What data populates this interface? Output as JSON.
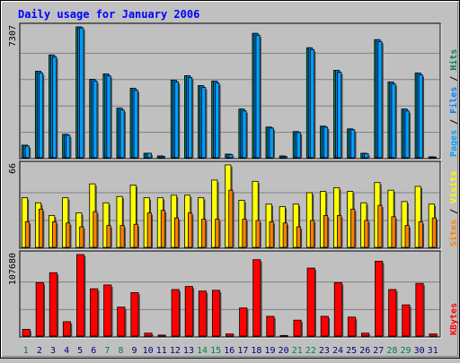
{
  "title": "Daily usage for January 2006",
  "colors": {
    "background": "#c0c0c0",
    "title": "#0000ff",
    "weekday_label": "#000080",
    "weekend_label": "#008040",
    "pages": "#00a0ff",
    "files": "#0080ff",
    "hits": "#00805c",
    "visits": "#ffff00",
    "sites": "#ff8000",
    "kbytes": "#ff0000"
  },
  "chart_data": [
    {
      "type": "bar",
      "panel": "hits-files-pages",
      "max_label": "7307",
      "ylim": [
        0,
        7307
      ],
      "grid": true,
      "categories": [
        "1",
        "2",
        "3",
        "4",
        "5",
        "6",
        "7",
        "8",
        "9",
        "10",
        "11",
        "12",
        "13",
        "14",
        "15",
        "16",
        "17",
        "18",
        "19",
        "20",
        "21",
        "22",
        "23",
        "24",
        "25",
        "26",
        "27",
        "28",
        "29",
        "30",
        "31"
      ],
      "weekend_days": [
        "1",
        "7",
        "8",
        "14",
        "15",
        "21",
        "22",
        "28",
        "29"
      ],
      "axis_legend": [
        "Pages",
        "Files",
        "Hits"
      ],
      "series": [
        {
          "name": "Hits",
          "values": [
            750,
            4850,
            5750,
            1350,
            7307,
            4400,
            4700,
            2800,
            3900,
            300,
            150,
            4350,
            4600,
            4050,
            4300,
            250,
            2750,
            6950,
            1750,
            150,
            1500,
            6150,
            1800,
            4900,
            1650,
            300,
            6600,
            4250,
            2750,
            4750,
            100
          ]
        },
        {
          "name": "Files",
          "values": [
            750,
            4850,
            5750,
            1350,
            7307,
            4400,
            4700,
            2800,
            3900,
            300,
            150,
            4350,
            4600,
            4050,
            4300,
            250,
            2750,
            6950,
            1750,
            150,
            1500,
            6150,
            1800,
            4900,
            1650,
            300,
            6600,
            4250,
            2750,
            4750,
            100
          ]
        },
        {
          "name": "Pages",
          "values": [
            700,
            4750,
            5650,
            1300,
            7250,
            4300,
            4600,
            2700,
            3800,
            300,
            120,
            4250,
            4500,
            3950,
            4200,
            220,
            2650,
            6850,
            1700,
            120,
            1450,
            6050,
            1750,
            4800,
            1600,
            280,
            6500,
            4150,
            2650,
            4650,
            90
          ]
        }
      ]
    },
    {
      "type": "bar",
      "panel": "visits-sites",
      "max_label": "66",
      "ylim": [
        0,
        66
      ],
      "grid": true,
      "categories": [
        "1",
        "2",
        "3",
        "4",
        "5",
        "6",
        "7",
        "8",
        "9",
        "10",
        "11",
        "12",
        "13",
        "14",
        "15",
        "16",
        "17",
        "18",
        "19",
        "20",
        "21",
        "22",
        "23",
        "24",
        "25",
        "26",
        "27",
        "28",
        "29",
        "30",
        "31"
      ],
      "axis_legend": [
        "Sites",
        "Visits"
      ],
      "series": [
        {
          "name": "Visits",
          "values": [
            40,
            36,
            26,
            40,
            28,
            51,
            36,
            41,
            50,
            40,
            40,
            42,
            42,
            40,
            54,
            66,
            38,
            53,
            35,
            33,
            35,
            44,
            45,
            48,
            45,
            36,
            52,
            46,
            37,
            49,
            35
          ]
        },
        {
          "name": "Sites",
          "values": [
            21,
            31,
            21,
            20,
            17,
            29,
            18,
            18,
            19,
            28,
            30,
            24,
            28,
            23,
            23,
            46,
            23,
            22,
            21,
            20,
            17,
            22,
            26,
            26,
            31,
            22,
            34,
            25,
            18,
            21,
            24
          ]
        }
      ]
    },
    {
      "type": "bar",
      "panel": "kbytes",
      "max_label": "107680",
      "ylim": [
        0,
        107680
      ],
      "grid": true,
      "categories": [
        "1",
        "2",
        "3",
        "4",
        "5",
        "6",
        "7",
        "8",
        "9",
        "10",
        "11",
        "12",
        "13",
        "14",
        "15",
        "16",
        "17",
        "18",
        "19",
        "20",
        "21",
        "22",
        "23",
        "24",
        "25",
        "26",
        "27",
        "28",
        "29",
        "30",
        "31"
      ],
      "axis_legend": [
        "KBytes"
      ],
      "series": [
        {
          "name": "KBytes",
          "values": [
            10000,
            71000,
            84000,
            20000,
            107680,
            63000,
            68000,
            39000,
            58000,
            5000,
            2500,
            62000,
            66000,
            60000,
            61000,
            4000,
            38000,
            101000,
            27000,
            2000,
            22000,
            90000,
            27000,
            71000,
            26000,
            5000,
            99000,
            62000,
            42000,
            70000,
            4000
          ]
        }
      ]
    }
  ]
}
